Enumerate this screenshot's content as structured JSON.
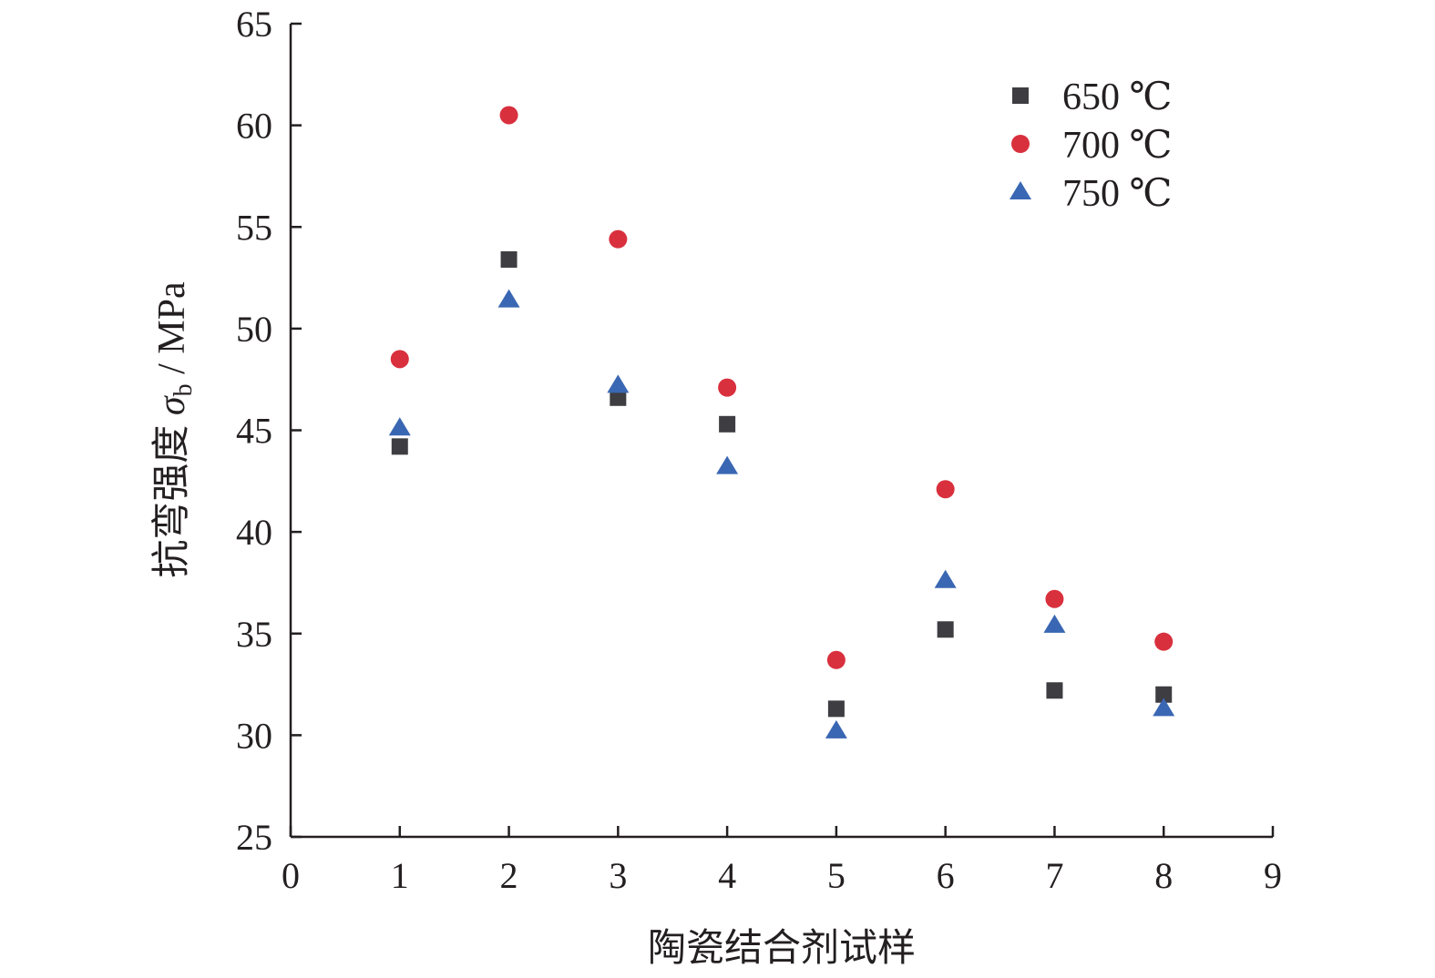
{
  "chart_data": {
    "type": "scatter",
    "title": "",
    "xlabel": "陶瓷结合剂试样",
    "ylabel": {
      "main": "抗弯强度 ",
      "symbol": "σ",
      "subscript": "b",
      "unit": " / MPa"
    },
    "xlim": [
      0,
      9
    ],
    "ylim": [
      25,
      65
    ],
    "xticks": [
      0,
      1,
      2,
      3,
      4,
      5,
      6,
      7,
      8,
      9
    ],
    "yticks": [
      25,
      30,
      35,
      40,
      45,
      50,
      55,
      60,
      65
    ],
    "grid": false,
    "legend_position": "top-right",
    "series": [
      {
        "name": "650 ℃",
        "marker": "square",
        "color": "#3d3d42",
        "x": [
          1,
          2,
          3,
          4,
          5,
          6,
          7,
          8
        ],
        "y": [
          44.2,
          53.4,
          46.6,
          45.3,
          31.3,
          35.2,
          32.2,
          32.0
        ]
      },
      {
        "name": "700 ℃",
        "marker": "circle",
        "color": "#d9303e",
        "x": [
          1,
          2,
          3,
          4,
          5,
          6,
          7,
          8
        ],
        "y": [
          48.5,
          60.5,
          54.4,
          47.1,
          33.7,
          42.1,
          36.7,
          34.6
        ]
      },
      {
        "name": "750 ℃",
        "marker": "triangle",
        "color": "#3a67b3",
        "x": [
          1,
          2,
          3,
          4,
          5,
          6,
          7,
          8
        ],
        "y": [
          45.1,
          51.4,
          47.2,
          43.2,
          30.2,
          37.6,
          35.4,
          31.3
        ]
      }
    ]
  }
}
